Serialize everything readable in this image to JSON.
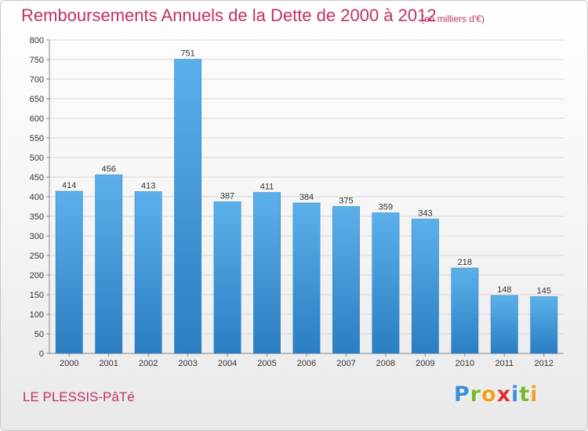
{
  "chart_data": {
    "type": "bar",
    "title": "Remboursements Annuels de la Dette de 2000 à 2012",
    "subtitle": "(en milliers d'€)",
    "categories": [
      "2000",
      "2001",
      "2002",
      "2003",
      "2004",
      "2005",
      "2006",
      "2007",
      "2008",
      "2009",
      "2010",
      "2011",
      "2012"
    ],
    "values": [
      414,
      456,
      413,
      751,
      387,
      411,
      384,
      375,
      359,
      343,
      218,
      148,
      145
    ],
    "ylim": [
      0,
      800
    ],
    "yticks": [
      0,
      50,
      100,
      150,
      200,
      250,
      300,
      350,
      400,
      450,
      500,
      550,
      600,
      650,
      700,
      750,
      800
    ],
    "grid": true,
    "bar_color": "#3d93d6"
  },
  "footer": {
    "commune": "LE PLESSIS-PâTé",
    "logo_letters": [
      {
        "char": "P",
        "color": "#3a8fd8"
      },
      {
        "char": "r",
        "color": "#78b82a"
      },
      {
        "char": "o",
        "color": "#f0a020"
      },
      {
        "char": "x",
        "color": "#e03030"
      },
      {
        "char": "i",
        "color": "#3a8fd8"
      },
      {
        "char": "t",
        "color": "#78b82a"
      },
      {
        "char": "i",
        "color": "#f0a020"
      }
    ]
  }
}
